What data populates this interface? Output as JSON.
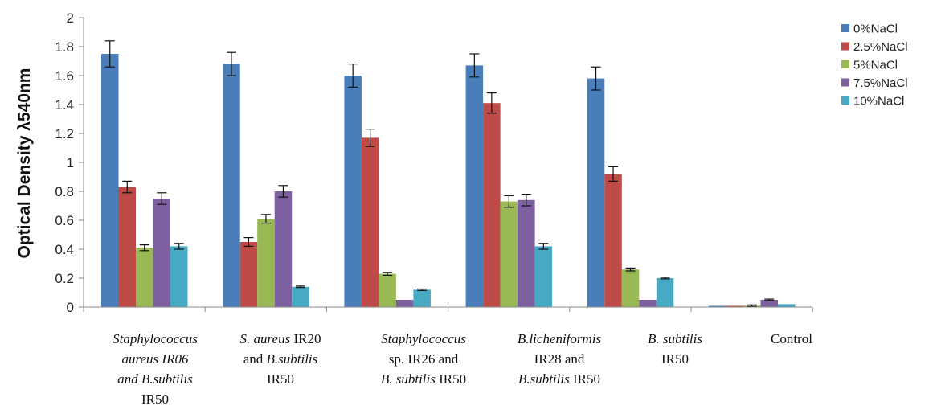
{
  "chart_data": {
    "type": "bar",
    "title": "",
    "xlabel": "",
    "ylabel": "Optical Density λ540nm",
    "ylim": [
      0,
      2
    ],
    "yticks": [
      "0",
      "0.2",
      "0.4",
      "0.6",
      "0.8",
      "1",
      "1.2",
      "1.4",
      "1.6",
      "1.8",
      "2"
    ],
    "grid": false,
    "legend_position": "top-right",
    "categories": [
      {
        "label": "Staphylococcus aureus IR06 and B.subtilis IR50",
        "lines": [
          [
            {
              "t": "Staphylococcus",
              "i": true
            }
          ],
          [
            {
              "t": "aureus IR06",
              "i": true
            }
          ],
          [
            {
              "t": "and B.subtilis",
              "i": true
            }
          ],
          [
            {
              "t": "IR50",
              "i": false
            }
          ]
        ]
      },
      {
        "label": "S. aureus IR20 and B.subtilis IR50",
        "lines": [
          [
            {
              "t": "S. aureus",
              "i": true
            },
            {
              "t": " IR20",
              "i": false
            }
          ],
          [
            {
              "t": "and ",
              "i": false
            },
            {
              "t": "B.subtilis",
              "i": true
            }
          ],
          [
            {
              "t": "IR50",
              "i": false
            }
          ]
        ]
      },
      {
        "label": "Staphylococcus sp. IR26 and B. subtilis IR50",
        "lines": [
          [
            {
              "t": "Staphylococcus",
              "i": true
            }
          ],
          [
            {
              "t": "sp. IR26 and",
              "i": false
            }
          ],
          [
            {
              "t": "B. subtilis",
              "i": true
            },
            {
              "t": " IR50",
              "i": false
            }
          ]
        ]
      },
      {
        "label": "B.licheniformis IR28 and B.subtilis IR50",
        "lines": [
          [
            {
              "t": "B.licheniformis",
              "i": true
            }
          ],
          [
            {
              "t": "IR28 and",
              "i": false
            }
          ],
          [
            {
              "t": "B.subtilis",
              "i": true
            },
            {
              "t": " IR50",
              "i": false
            }
          ]
        ]
      },
      {
        "label": "B. subtilis IR50",
        "lines": [
          [
            {
              "t": "B. subtilis",
              "i": true
            }
          ],
          [
            {
              "t": "IR50",
              "i": false
            }
          ]
        ]
      },
      {
        "label": "Control",
        "lines": [
          [
            {
              "t": "Control",
              "i": false
            }
          ]
        ]
      }
    ],
    "series": [
      {
        "name": "0%NaCl",
        "color": "#4A7EBB",
        "values": [
          1.75,
          1.68,
          1.6,
          1.67,
          1.58,
          0.0
        ],
        "errors": [
          0.09,
          0.08,
          0.08,
          0.08,
          0.08,
          0.0
        ]
      },
      {
        "name": "2.5%NaCl",
        "color": "#BE4B48",
        "values": [
          0.83,
          0.45,
          1.17,
          1.41,
          0.92,
          0.005
        ],
        "errors": [
          0.04,
          0.03,
          0.06,
          0.07,
          0.05,
          0.0
        ]
      },
      {
        "name": "5%NaCl",
        "color": "#98B954",
        "values": [
          0.41,
          0.61,
          0.23,
          0.73,
          0.26,
          0.01
        ],
        "errors": [
          0.02,
          0.03,
          0.01,
          0.04,
          0.01,
          0.005
        ]
      },
      {
        "name": "7.5%NaCl",
        "color": "#7D60A0",
        "values": [
          0.75,
          0.8,
          0.05,
          0.74,
          0.05,
          0.05
        ],
        "errors": [
          0.04,
          0.04,
          0.0,
          0.04,
          0.0,
          0.005
        ]
      },
      {
        "name": "10%NaCl",
        "color": "#46AAC5",
        "values": [
          0.42,
          0.14,
          0.12,
          0.42,
          0.2,
          0.02
        ],
        "errors": [
          0.02,
          0.005,
          0.005,
          0.02,
          0.005,
          0.0
        ]
      }
    ]
  }
}
